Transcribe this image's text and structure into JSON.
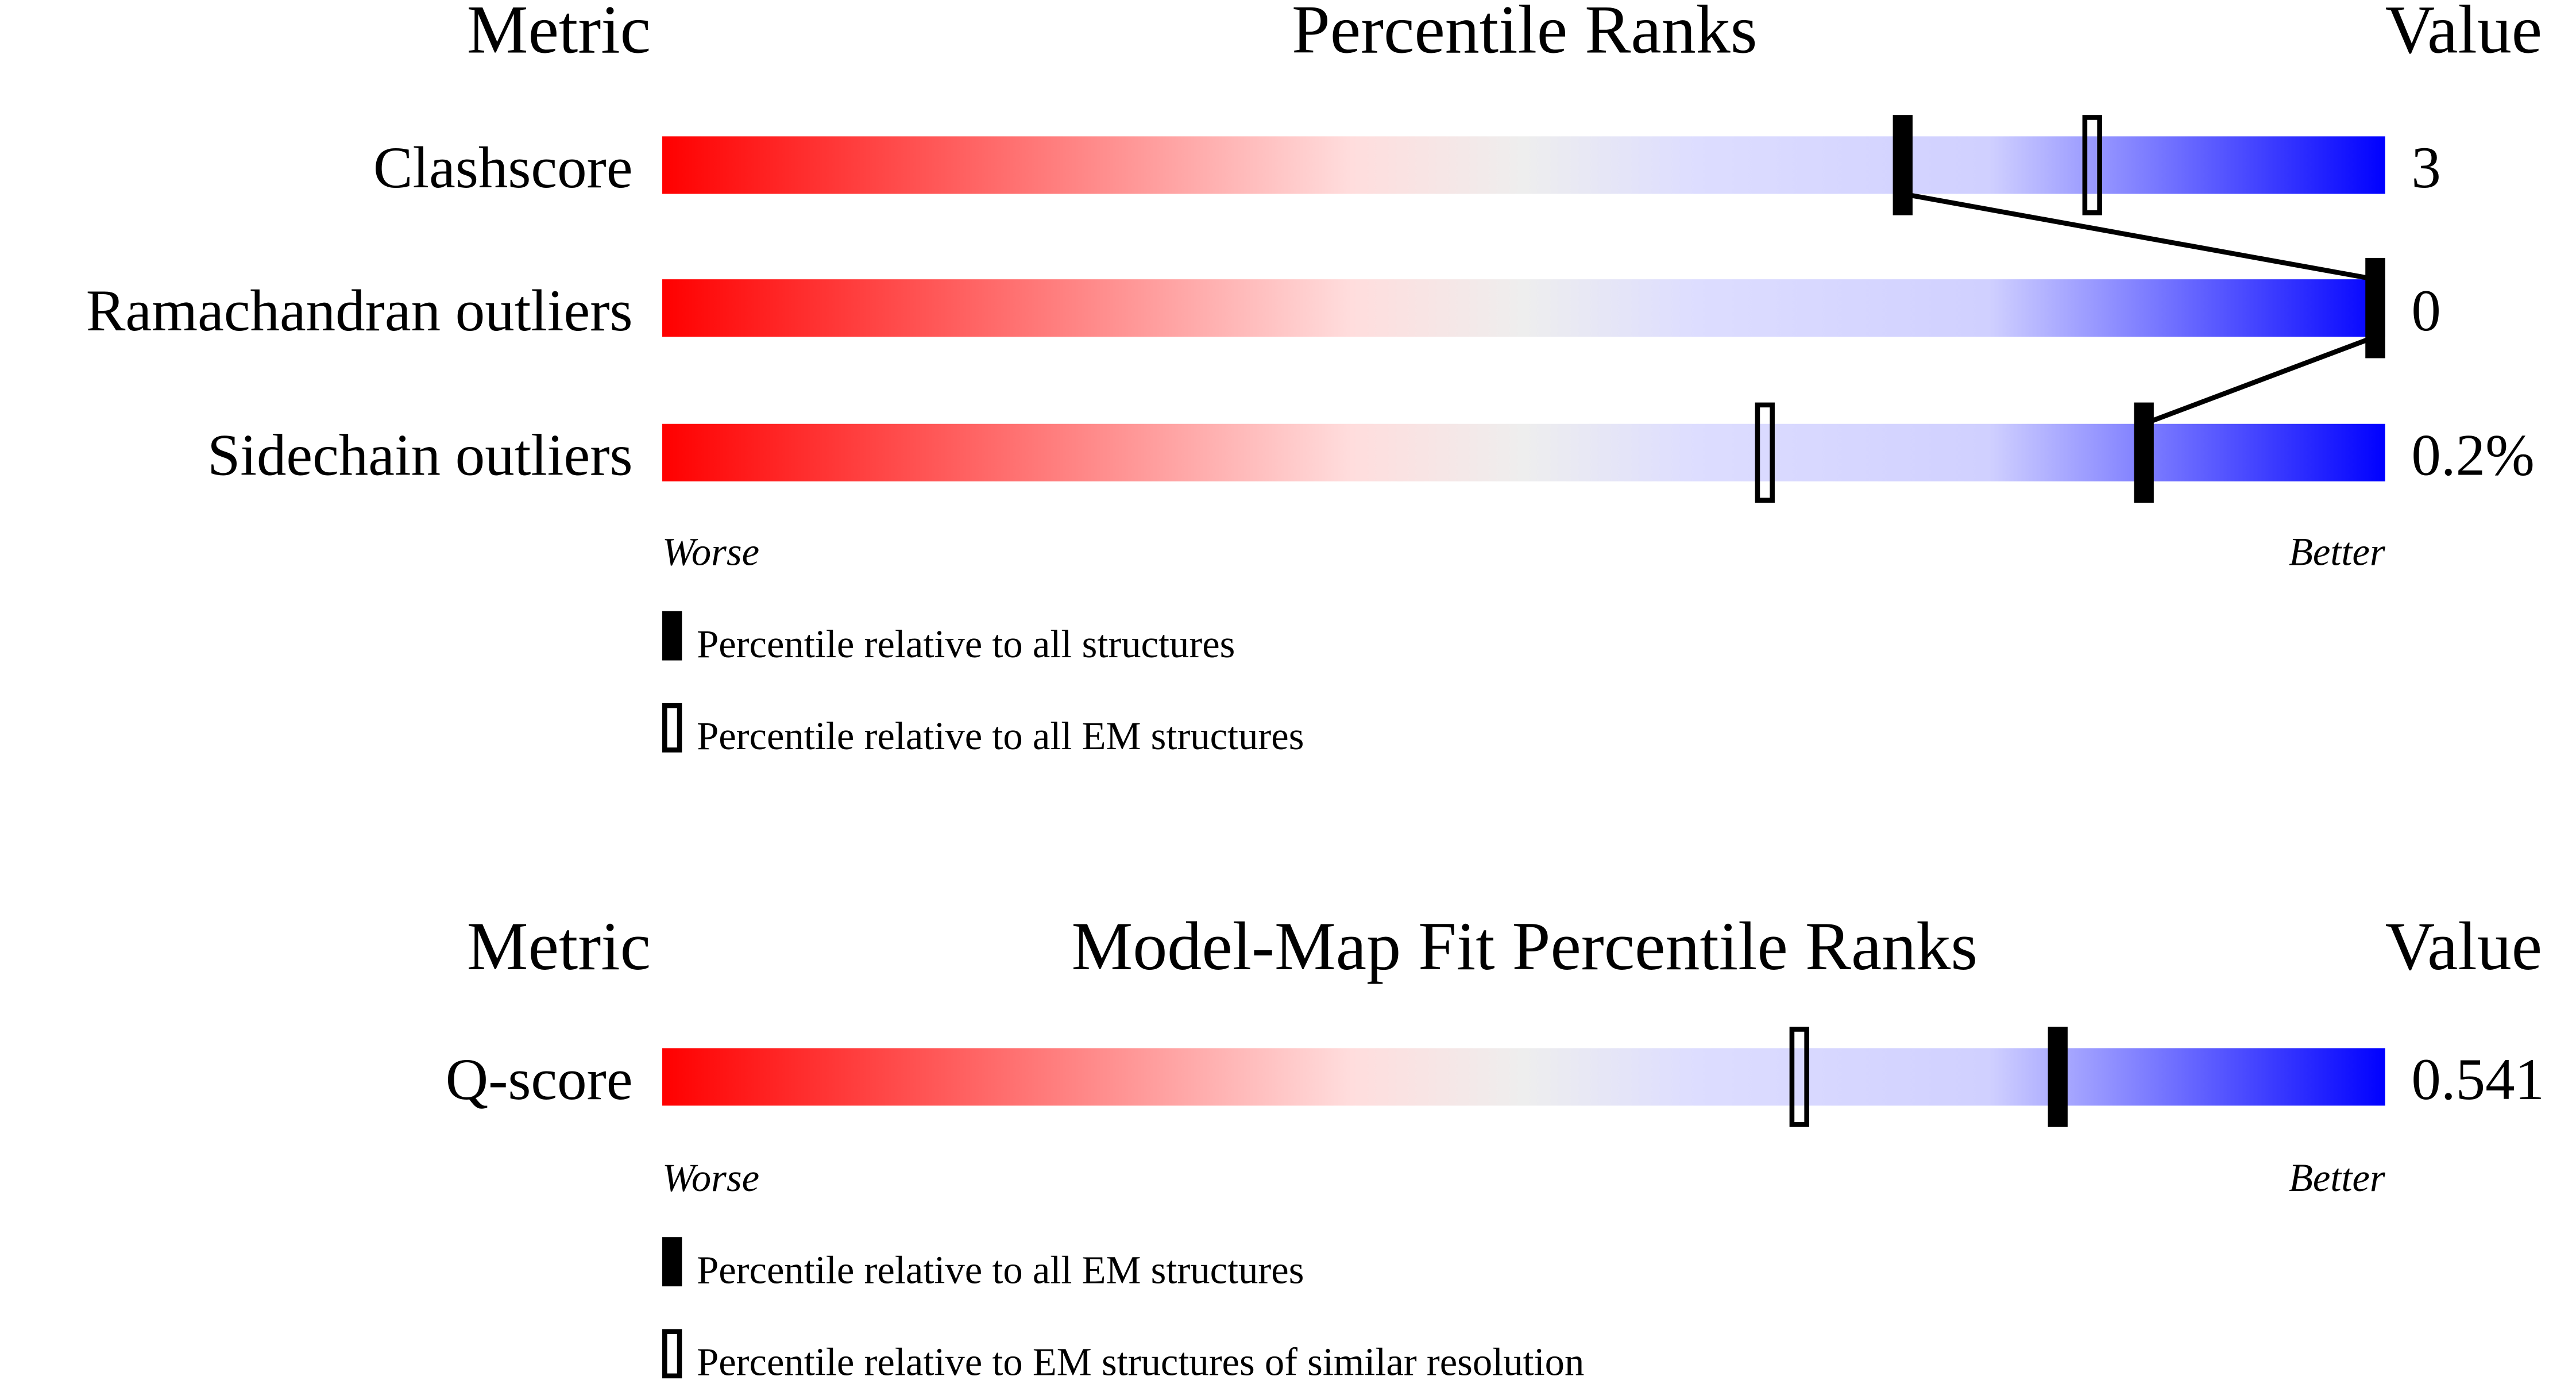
{
  "chart_data": [
    {
      "type": "bar",
      "title": "Percentile Ranks",
      "header_metric": "Metric",
      "header_value": "Value",
      "xlim": [
        0,
        100
      ],
      "worse_label": "Worse",
      "better_label": "Better",
      "gradient_colors": [
        "#ff0000",
        "#ffdddd",
        "#eeeeee",
        "#ddddff",
        "#0000ff"
      ],
      "rows": [
        {
          "metric": "Clashscore",
          "value": "3",
          "percentile_all": 72,
          "percentile_em": 83
        },
        {
          "metric": "Ramachandran outliers",
          "value": "0",
          "percentile_all": 100,
          "percentile_em": 100
        },
        {
          "metric": "Sidechain outliers",
          "value": "0.2%",
          "percentile_all": 86,
          "percentile_em": 64
        }
      ],
      "legend": [
        {
          "marker": "filled",
          "label": "Percentile relative to all structures"
        },
        {
          "marker": "open",
          "label": "Percentile relative to all EM structures"
        }
      ]
    },
    {
      "type": "bar",
      "title": "Model-Map Fit Percentile Ranks",
      "header_metric": "Metric",
      "header_value": "Value",
      "xlim": [
        0,
        100
      ],
      "worse_label": "Worse",
      "better_label": "Better",
      "rows": [
        {
          "metric": "Q-score",
          "value": "0.541",
          "percentile_all": 81,
          "percentile_em": 66
        }
      ],
      "legend": [
        {
          "marker": "filled",
          "label": "Percentile relative to all EM structures"
        },
        {
          "marker": "open",
          "label": "Percentile relative to EM structures of similar resolution"
        }
      ]
    }
  ]
}
